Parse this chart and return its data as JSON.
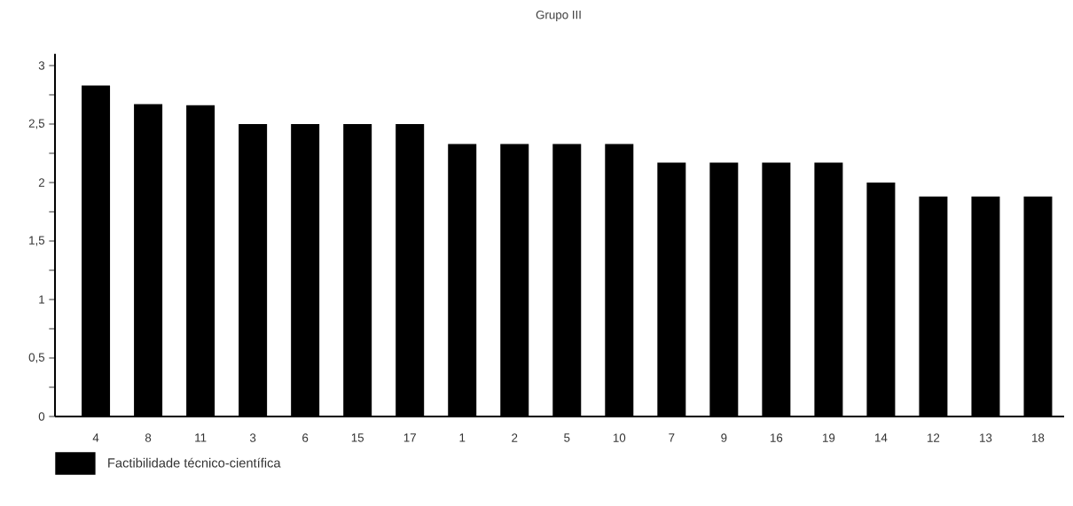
{
  "chart_data": {
    "type": "bar",
    "title": "Grupo III",
    "categories": [
      "4",
      "8",
      "11",
      "3",
      "6",
      "15",
      "17",
      "1",
      "2",
      "5",
      "10",
      "7",
      "9",
      "16",
      "19",
      "14",
      "12",
      "13",
      "18"
    ],
    "series": [
      {
        "name": "Factibilidade técnico-científica",
        "color": "#000000",
        "values": [
          2.83,
          2.67,
          2.66,
          2.5,
          2.5,
          2.5,
          2.5,
          2.33,
          2.33,
          2.33,
          2.33,
          2.17,
          2.17,
          2.17,
          2.17,
          2.0,
          1.88,
          1.88,
          1.88
        ]
      }
    ],
    "ylim": [
      0,
      3.1
    ],
    "yticks": [
      0,
      {
        "value": 0.5,
        "label": "0,5"
      },
      1,
      {
        "value": 1.5,
        "label": "1,5"
      },
      2,
      {
        "value": 2.5,
        "label": "2,5"
      },
      3
    ],
    "grid": false,
    "legend": "bottom left"
  }
}
